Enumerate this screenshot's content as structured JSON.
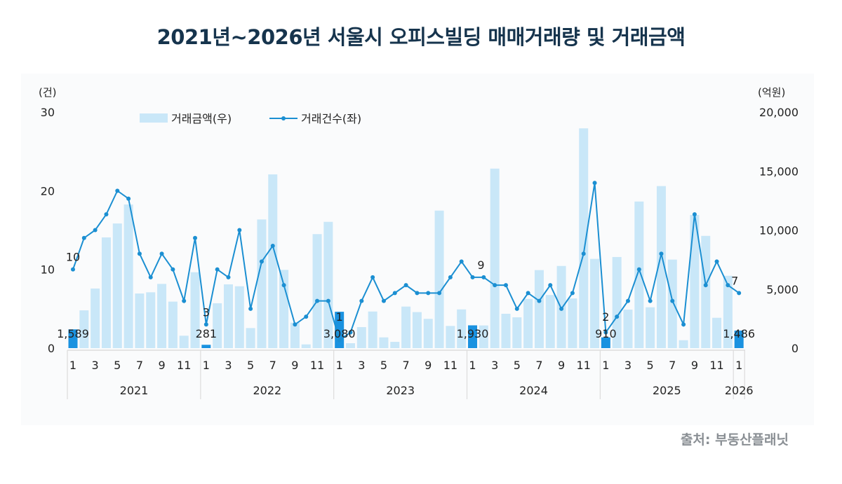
{
  "title": "2021년~2026년 서울시 오피스빌딩 매매거래량 및 거래금액",
  "source": "출처: 부동산플래닛",
  "chart_data": {
    "type": "bar+line",
    "title": "2021년~2026년 서울시 오피스빌딩 매매거래량 및 거래금액",
    "colors": {
      "bar": "#c9e7f8",
      "bar_highlight": "#1a92e0",
      "line": "#1b8fd2"
    },
    "left_axis": {
      "unit": "(건)",
      "range": [
        0,
        30
      ],
      "ticks": [
        "0",
        "10",
        "20",
        "30"
      ]
    },
    "right_axis": {
      "unit": "(억원)",
      "range": [
        0,
        20000
      ],
      "ticks": [
        "0",
        "5,000",
        "10,000",
        "15,000",
        "20,000"
      ]
    },
    "legend": {
      "position": "top",
      "items": [
        "거래금액(우)",
        "거래건수(좌)"
      ]
    },
    "grid": false,
    "years": [
      "2021",
      "2022",
      "2023",
      "2024",
      "2025",
      "2026"
    ],
    "month_tick_labels": [
      "1",
      "3",
      "5",
      "7",
      "9",
      "11"
    ],
    "series": [
      {
        "name": "거래금액(우)",
        "type": "bar",
        "axis": "right",
        "values": [
          1589,
          3200,
          5050,
          9380,
          10560,
          12170,
          4630,
          4730,
          5440,
          3940,
          1050,
          6430,
          281,
          3800,
          5400,
          5240,
          1700,
          10900,
          14720,
          6630,
          2150,
          315,
          9660,
          10700,
          3080,
          415,
          1780,
          3100,
          910,
          530,
          3520,
          3050,
          2480,
          11650,
          1880,
          3280,
          1930,
          1920,
          15210,
          2910,
          2610,
          4170,
          6610,
          4500,
          6960,
          4210,
          18620,
          7560,
          910,
          7720,
          3260,
          12420,
          3460,
          13730,
          7500,
          670,
          11280,
          9510,
          2570,
          6130,
          1486
        ]
      },
      {
        "name": "거래건수(좌)",
        "type": "line",
        "axis": "left",
        "values": [
          10,
          14,
          15,
          17,
          20,
          19,
          12,
          9,
          12,
          10,
          6,
          14,
          3,
          10,
          9,
          15,
          5,
          11,
          13,
          8,
          3,
          4,
          6,
          6,
          1,
          2,
          6,
          9,
          6,
          7,
          8,
          7,
          7,
          7,
          9,
          11,
          9,
          9,
          8,
          8,
          5,
          7,
          6,
          8,
          5,
          7,
          12,
          21,
          2,
          4,
          6,
          10,
          6,
          12,
          6,
          3,
          17,
          8,
          11,
          8,
          7
        ]
      }
    ],
    "data_labels": [
      {
        "index": 0,
        "bar": "1,589",
        "line": "10"
      },
      {
        "index": 12,
        "bar": "281",
        "line": "3"
      },
      {
        "index": 24,
        "bar": "3,080",
        "line": "1"
      },
      {
        "index": 36,
        "bar": "1,930",
        "line": "9"
      },
      {
        "index": 48,
        "bar": "910",
        "line": "2"
      },
      {
        "index": 60,
        "bar": "1,486",
        "line": "7"
      }
    ]
  }
}
